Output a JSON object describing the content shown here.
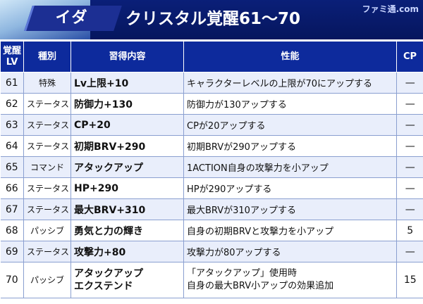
{
  "header": {
    "character_name": "イダ",
    "title": "クリスタル覚醒61〜70",
    "watermark": "ファミ通.com"
  },
  "table": {
    "columns": {
      "lv_line1": "覚醒",
      "lv_line2": "LV",
      "type": "種別",
      "skill": "習得内容",
      "effect": "性能",
      "cp": "CP"
    },
    "rows": [
      {
        "lv": "61",
        "type": "特殊",
        "skill": "Lv上限+10",
        "skill2": "",
        "effect": "キャラクターレベルの上限が70にアップする",
        "effect2": "",
        "cp": "—"
      },
      {
        "lv": "62",
        "type": "ステータス",
        "skill": "防御力+130",
        "skill2": "",
        "effect": "防御力が130アップする",
        "effect2": "",
        "cp": "—"
      },
      {
        "lv": "63",
        "type": "ステータス",
        "skill": "CP+20",
        "skill2": "",
        "effect": "CPが20アップする",
        "effect2": "",
        "cp": "—"
      },
      {
        "lv": "64",
        "type": "ステータス",
        "skill": "初期BRV+290",
        "skill2": "",
        "effect": "初期BRVが290アップする",
        "effect2": "",
        "cp": "—"
      },
      {
        "lv": "65",
        "type": "コマンド",
        "skill": "アタックアップ",
        "skill2": "",
        "effect": "1ACTION自身の攻撃力を小アップ",
        "effect2": "",
        "cp": "—"
      },
      {
        "lv": "66",
        "type": "ステータス",
        "skill": "HP+290",
        "skill2": "",
        "effect": "HPが290アップする",
        "effect2": "",
        "cp": "—"
      },
      {
        "lv": "67",
        "type": "ステータス",
        "skill": "最大BRV+310",
        "skill2": "",
        "effect": "最大BRVが310アップする",
        "effect2": "",
        "cp": "—"
      },
      {
        "lv": "68",
        "type": "パッシブ",
        "skill": "勇気と力の輝き",
        "skill2": "",
        "effect": "自身の初期BRVと攻撃力を小アップ",
        "effect2": "",
        "cp": "5"
      },
      {
        "lv": "69",
        "type": "ステータス",
        "skill": "攻撃力+80",
        "skill2": "",
        "effect": "攻撃力が80アップする",
        "effect2": "",
        "cp": "—"
      },
      {
        "lv": "70",
        "type": "パッシブ",
        "skill": "アタックアップ",
        "skill2": "エクステンド",
        "effect": "「アタックアップ」使用時",
        "effect2": "自身の最大BRV小アップの効果追加",
        "cp": "15"
      }
    ]
  }
}
